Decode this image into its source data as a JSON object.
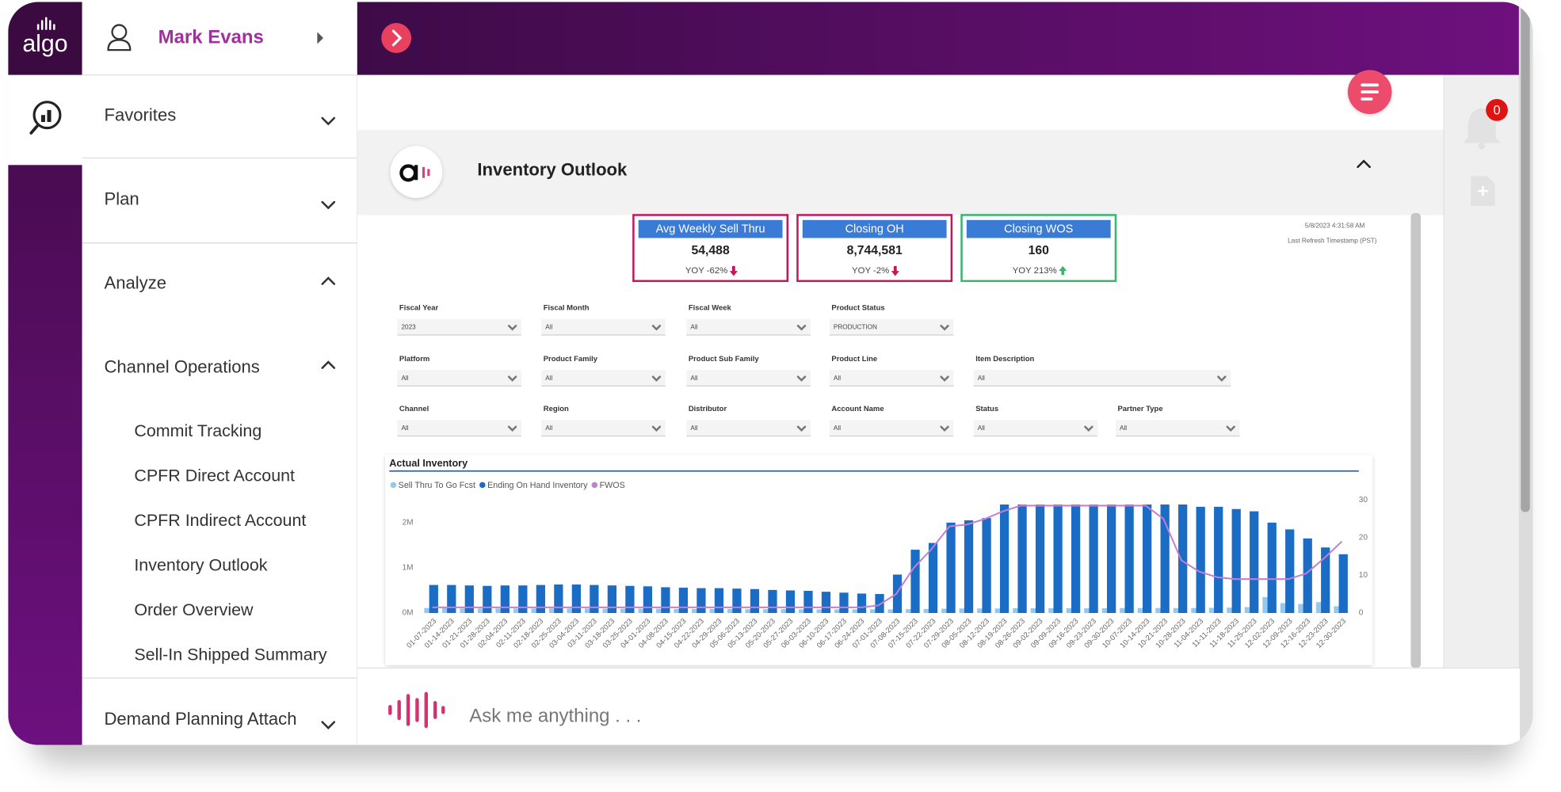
{
  "logo": "algo",
  "user": {
    "name": "Mark Evans"
  },
  "menu": [
    {
      "label": "Favorites",
      "expanded": false
    },
    {
      "label": "Plan",
      "expanded": false
    },
    {
      "label": "Analyze",
      "expanded": true
    },
    {
      "label": "Channel Operations",
      "expanded": true,
      "items": [
        "Commit Tracking",
        "CPFR Direct Account",
        "CPFR Indirect Account",
        "Inventory Outlook",
        "Order Overview",
        "Sell-In Shipped Summary"
      ]
    },
    {
      "label": "Demand Planning Attach",
      "expanded": false
    }
  ],
  "header": {
    "title": "Inventory Outlook"
  },
  "notifications": {
    "count": 0
  },
  "kpis": [
    {
      "title": "Avg Weekly Sell Thru",
      "value": "54,488",
      "change": "YOY -62%",
      "trend": "down"
    },
    {
      "title": "Closing OH",
      "value": "8,744,581",
      "change": "YOY -2%",
      "trend": "down"
    },
    {
      "title": "Closing WOS",
      "value": "160",
      "change": "YOY 213%",
      "trend": "up"
    }
  ],
  "refresh": {
    "timestamp": "5/8/2023 4:31:58 AM",
    "label": "Last Refresh Timestamp (PST)"
  },
  "filters": [
    [
      {
        "label": "Fiscal Year",
        "value": "2023"
      },
      {
        "label": "Fiscal Month",
        "value": "All"
      },
      {
        "label": "Fiscal Week",
        "value": "All"
      },
      {
        "label": "Product Status",
        "value": "PRODUCTION"
      }
    ],
    [
      {
        "label": "Platform",
        "value": "All"
      },
      {
        "label": "Product Family",
        "value": "All"
      },
      {
        "label": "Product Sub Family",
        "value": "All"
      },
      {
        "label": "Product Line",
        "value": "All"
      },
      {
        "label": "Item Description",
        "value": "All"
      }
    ],
    [
      {
        "label": "Channel",
        "value": "All"
      },
      {
        "label": "Region",
        "value": "All"
      },
      {
        "label": "Distributor",
        "value": "All"
      },
      {
        "label": "Account Name",
        "value": "All"
      },
      {
        "label": "Status",
        "value": "All"
      },
      {
        "label": "Partner Type",
        "value": "All"
      }
    ]
  ],
  "chat": {
    "placeholder": "Ask me anything . . ."
  },
  "chart_data": {
    "type": "bar",
    "title": "Actual Inventory",
    "categories": [
      "01-07-2023",
      "01-14-2023",
      "01-21-2023",
      "01-28-2023",
      "02-04-2023",
      "02-11-2023",
      "02-18-2023",
      "02-25-2023",
      "03-04-2023",
      "03-11-2023",
      "03-18-2023",
      "03-25-2023",
      "04-01-2023",
      "04-08-2023",
      "04-15-2023",
      "04-22-2023",
      "04-29-2023",
      "05-06-2023",
      "05-13-2023",
      "05-20-2023",
      "05-27-2023",
      "06-03-2023",
      "06-10-2023",
      "06-17-2023",
      "06-24-2023",
      "07-01-2023",
      "07-08-2023",
      "07-15-2023",
      "07-22-2023",
      "07-29-2023",
      "08-05-2023",
      "08-12-2023",
      "08-19-2023",
      "08-26-2023",
      "09-02-2023",
      "09-09-2023",
      "09-16-2023",
      "09-23-2023",
      "09-30-2023",
      "10-07-2023",
      "10-14-2023",
      "10-21-2023",
      "10-28-2023",
      "11-04-2023",
      "11-11-2023",
      "11-18-2023",
      "11-25-2023",
      "12-02-2023",
      "12-09-2023",
      "12-16-2023",
      "12-23-2023",
      "12-30-2023"
    ],
    "series": [
      {
        "name": "Sell Thru To Go Fcst",
        "type": "bar",
        "color": "#93c8f0",
        "values": [
          110000,
          105000,
          100000,
          100000,
          100000,
          100000,
          100000,
          100000,
          100000,
          100000,
          95000,
          95000,
          95000,
          95000,
          90000,
          90000,
          90000,
          90000,
          85000,
          85000,
          85000,
          80000,
          80000,
          80000,
          80000,
          80000,
          80000,
          85000,
          90000,
          95000,
          100000,
          100000,
          100000,
          105000,
          105000,
          105000,
          105000,
          105000,
          105000,
          110000,
          110000,
          110000,
          110000,
          110000,
          115000,
          120000,
          130000,
          350000,
          220000,
          200000,
          240000,
          150000
        ]
      },
      {
        "name": "Ending On Hand Inventory",
        "type": "bar",
        "color": "#1a6cc4",
        "values": [
          620000,
          620000,
          610000,
          600000,
          610000,
          610000,
          620000,
          630000,
          630000,
          620000,
          610000,
          600000,
          590000,
          570000,
          560000,
          550000,
          550000,
          540000,
          530000,
          510000,
          500000,
          490000,
          470000,
          450000,
          430000,
          420000,
          850000,
          1400000,
          1550000,
          2000000,
          2050000,
          2100000,
          2400000,
          2400000,
          2400000,
          2400000,
          2400000,
          2400000,
          2400000,
          2400000,
          2400000,
          2400000,
          2400000,
          2350000,
          2350000,
          2300000,
          2250000,
          2000000,
          1850000,
          1650000,
          1450000,
          1300000
        ]
      },
      {
        "name": "FWOS",
        "type": "line",
        "axis": "y2",
        "color": "#c47fd3",
        "values": [
          1.5,
          1.5,
          1.5,
          1.5,
          1.5,
          1.5,
          1.5,
          1.5,
          1.5,
          1.5,
          1.5,
          1.5,
          1.5,
          1.5,
          1.5,
          1.5,
          1.5,
          1.5,
          1.5,
          1.5,
          1.5,
          1.5,
          1.5,
          1.5,
          1.5,
          2,
          5,
          12,
          17,
          23,
          23.5,
          25,
          27,
          28.5,
          28.5,
          28.5,
          28.5,
          28.5,
          28.5,
          28.5,
          28.5,
          25,
          14,
          11,
          9.5,
          9,
          9,
          9,
          9,
          10.5,
          14.5,
          19
        ]
      }
    ],
    "ylim": [
      0,
      2500000
    ],
    "yticks": [
      {
        "value": 0,
        "label": "0M"
      },
      {
        "value": 1000000,
        "label": "1M"
      },
      {
        "value": 2000000,
        "label": "2M"
      }
    ],
    "y2lim": [
      0,
      30
    ],
    "y2ticks": [
      0,
      10,
      20,
      30
    ],
    "grid": false
  }
}
